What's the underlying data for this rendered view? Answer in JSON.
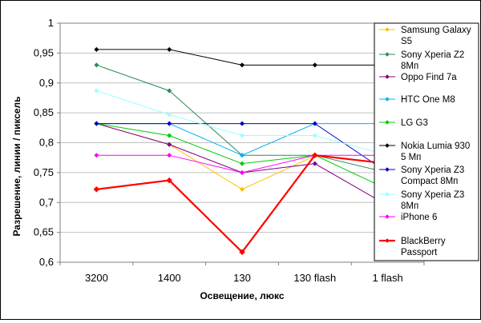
{
  "chart_data": {
    "type": "line",
    "title": "",
    "xlabel": "Освещение, люкс",
    "ylabel": "Разрешение, линии / пиксель",
    "categories": [
      "3200",
      "1400",
      "130",
      "130 flash",
      "1 flash"
    ],
    "ylim": [
      0.6,
      1.0
    ],
    "yticks": [
      "0,6",
      "0,65",
      "0,7",
      "0,75",
      "0,8",
      "0,85",
      "0,9",
      "0,95",
      "1"
    ],
    "grid": true,
    "legend_position": "right",
    "series": [
      {
        "name": "Samsung Galaxy S5",
        "color": "#FFC000",
        "values": [
          0.832,
          0.797,
          0.722,
          0.778,
          0.765
        ]
      },
      {
        "name": "Sony Xperia Z2 8Мп",
        "color": "#2E8B57",
        "values": [
          0.93,
          0.887,
          0.779,
          0.779,
          0.75
        ]
      },
      {
        "name": "Oppo Find 7a",
        "color": "#800080",
        "values": [
          0.832,
          0.797,
          0.75,
          0.765,
          0.695
        ]
      },
      {
        "name": "HTC One M8",
        "color": "#00B0F0",
        "values": [
          0.832,
          0.832,
          0.779,
          0.832,
          0.832
        ]
      },
      {
        "name": "LG G3",
        "color": "#00CC00",
        "values": [
          0.832,
          0.812,
          0.765,
          0.779,
          0.722
        ]
      },
      {
        "name": "Nokia Lumia 930 5 Мп",
        "color": "#000000",
        "values": [
          0.956,
          0.956,
          0.93,
          0.93,
          0.93
        ]
      },
      {
        "name": "Sony Xperia Z3 Compact 8Мп",
        "color": "#0000CC",
        "values": [
          0.832,
          0.832,
          0.832,
          0.832,
          0.75
        ]
      },
      {
        "name": "Sony Xperia Z3 8Мп",
        "color": "#99FFFF",
        "values": [
          0.887,
          0.847,
          0.812,
          0.812,
          0.779
        ]
      },
      {
        "name": "iPhone 6",
        "color": "#FF00FF",
        "values": [
          0.779,
          0.779,
          0.75,
          0.779,
          0.779
        ]
      },
      {
        "name": "BlackBerry Passport",
        "color": "#FF0000",
        "values": [
          0.722,
          0.737,
          0.617,
          0.779,
          0.765
        ]
      }
    ],
    "legend_labels": [
      [
        "Samsung Galaxy",
        "S5"
      ],
      [
        "Sony Xperia Z2",
        "8Мп"
      ],
      [
        "Oppo Find 7a"
      ],
      [
        "HTC One M8"
      ],
      [
        "LG G3"
      ],
      [
        "Nokia Lumia 930",
        "5 Мп"
      ],
      [
        "Sony Xperia Z3",
        "Compact 8Мп"
      ],
      [
        "Sony Xperia Z3",
        "8Мп"
      ],
      [
        "iPhone 6"
      ],
      [
        "BlackBerry",
        "Passport"
      ]
    ]
  }
}
